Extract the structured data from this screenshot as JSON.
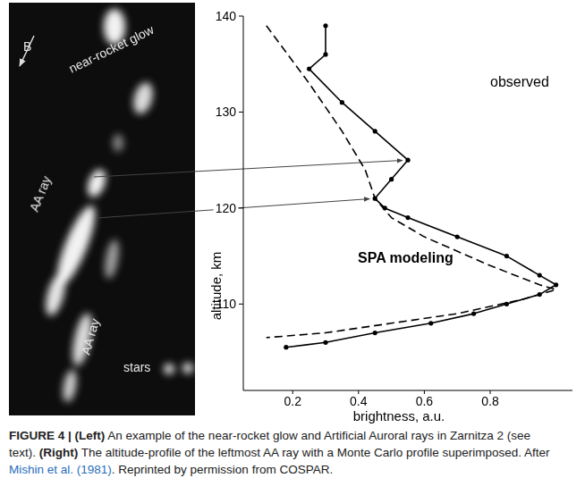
{
  "photo": {
    "labels": [
      {
        "text": "B"
      },
      {
        "text": "near-rocket glow"
      },
      {
        "text": "AA ray"
      },
      {
        "text": "AA ray"
      },
      {
        "text": "stars"
      }
    ]
  },
  "chart_data": {
    "type": "line",
    "x_label": "brightness, a.u.",
    "y_label": "altitude, km",
    "xlim": [
      0.05,
      1.05
    ],
    "ylim": [
      101,
      140
    ],
    "xticks": [
      0.2,
      0.4,
      0.6,
      0.8
    ],
    "yticks": [
      110,
      120,
      130,
      140
    ],
    "series": [
      {
        "name": "observed",
        "color": "#000000",
        "marker": "circle",
        "line_style": "solid",
        "x": [
          0.3,
          0.3,
          0.25,
          0.35,
          0.45,
          0.55,
          0.5,
          0.45,
          0.48,
          0.55,
          0.7,
          0.85,
          0.95,
          1.0,
          0.95,
          0.85,
          0.75,
          0.62,
          0.45,
          0.3,
          0.18
        ],
        "values": [
          139,
          136,
          134.5,
          131,
          128,
          125,
          123,
          121,
          120,
          119,
          117,
          115,
          113,
          112,
          111,
          110,
          109,
          108,
          107,
          106,
          105.5
        ]
      },
      {
        "name": "SPA modeling",
        "color": "#000000",
        "marker": "none",
        "line_style": "dashed",
        "x": [
          0.12,
          0.25,
          0.35,
          0.42,
          0.45,
          0.5,
          0.6,
          0.8,
          0.95,
          1.0,
          0.9,
          0.7,
          0.5,
          0.3,
          0.12
        ],
        "values": [
          139,
          133,
          128,
          124,
          121,
          119,
          117,
          114,
          112,
          111.5,
          110.5,
          109,
          108,
          107,
          106.5
        ]
      }
    ]
  },
  "caption": {
    "runs": [
      {
        "text": "FIGURE 4 | ",
        "bold": true
      },
      {
        "text": "(Left)",
        "bold": true
      },
      {
        "text": " An example of the near-rocket glow and Artificial Auroral rays in Zarnitza 2 (see text). "
      },
      {
        "text": "(Right)",
        "bold": true
      },
      {
        "text": " The altitude-profile of the leftmost AA ray with a Monte Carlo profile superimposed. After "
      },
      {
        "text": "Mishin et al. (1981)",
        "link": true
      },
      {
        "text": ". Reprinted by permission from COSPAR."
      }
    ]
  }
}
